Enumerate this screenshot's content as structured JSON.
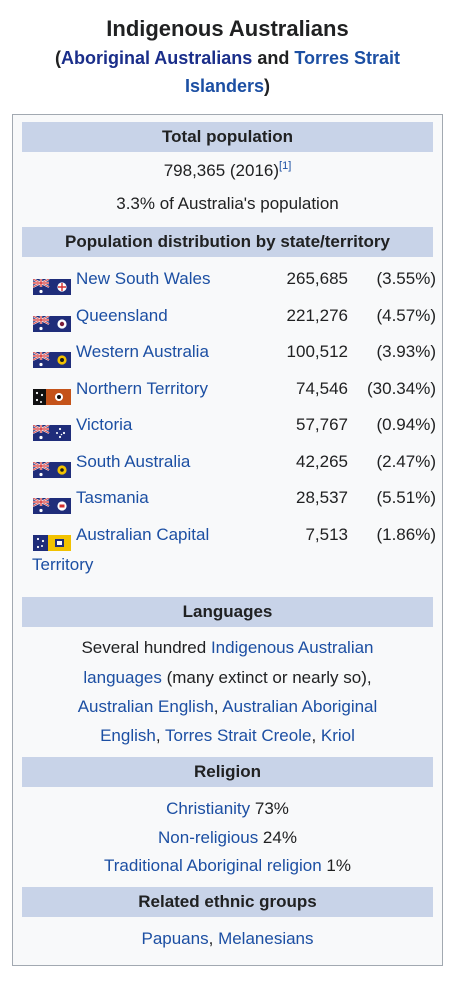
{
  "header": {
    "title": "Indigenous Australians",
    "sub_open": "(",
    "sub_link1": "Aboriginal Australians",
    "sub_and": " and ",
    "sub_link2": "Torres Strait Islanders",
    "sub_close": ")"
  },
  "population": {
    "heading": "Total population",
    "value": "798,365 (2016)",
    "ref": "[1]",
    "share": "3.3% of Australia's population"
  },
  "distribution": {
    "heading": "Population distribution by state/territory",
    "rows": [
      {
        "state": "New South Wales",
        "count": "265,685",
        "pct": "(3.55%)",
        "flag": "nsw-flag-icon"
      },
      {
        "state": "Queensland",
        "count": "221,276",
        "pct": "(4.57%)",
        "flag": "qld-flag-icon"
      },
      {
        "state": "Western Australia",
        "count": "100,512",
        "pct": "(3.93%)",
        "flag": "wa-flag-icon"
      },
      {
        "state": "Northern Territory",
        "count": "74,546",
        "pct": "(30.34%)",
        "flag": "nt-flag-icon"
      },
      {
        "state": "Victoria",
        "count": "57,767",
        "pct": "(0.94%)",
        "flag": "vic-flag-icon"
      },
      {
        "state": "South Australia",
        "count": "42,265",
        "pct": "(2.47%)",
        "flag": "sa-flag-icon"
      },
      {
        "state": "Tasmania",
        "count": "28,537",
        "pct": "(5.51%)",
        "flag": "tas-flag-icon"
      },
      {
        "state": "Australian Capital",
        "state_line2": "Territory",
        "count": "7,513",
        "pct": "(1.86%)",
        "flag": "act-flag-icon"
      }
    ]
  },
  "languages": {
    "heading": "Languages",
    "t1": "Several hundred ",
    "l1": "Indigenous Australian languages",
    "t2": " (many extinct or nearly so),",
    "l2": "Australian English",
    "c1": ", ",
    "l3": "Australian Aboriginal English",
    "c2": ", ",
    "l4": "Torres Strait Creole",
    "c3": ", ",
    "l5": "Kriol"
  },
  "religion": {
    "heading": "Religion",
    "items": [
      {
        "name": "Christianity",
        "pct": " 73%"
      },
      {
        "name": "Non-religious",
        "pct": " 24%"
      },
      {
        "name": "Traditional Aboriginal religion",
        "pct": " 1%"
      }
    ]
  },
  "related": {
    "heading": "Related ethnic groups",
    "l1": "Papuans",
    "sep": ", ",
    "l2": "Melanesians"
  },
  "colors": {
    "link": "#1c4fa3",
    "header_bg": "#c8d3e8",
    "box_bg": "#f8f9fa"
  }
}
